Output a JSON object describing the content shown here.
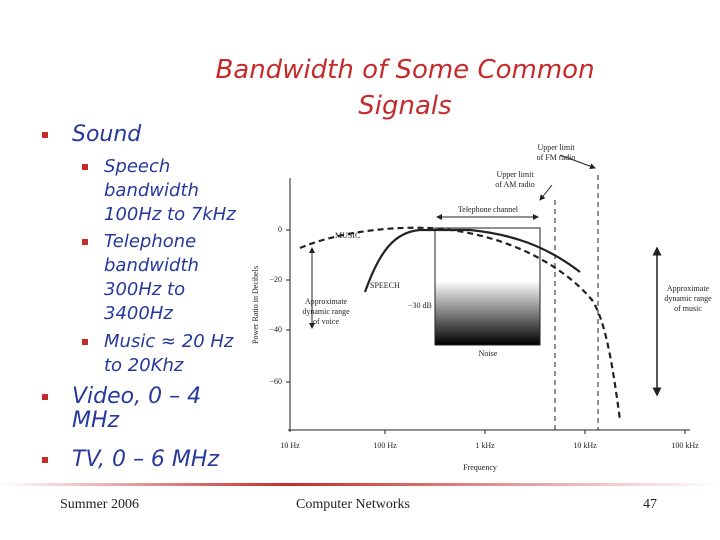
{
  "header": {
    "title": [
      "Bandwidth of Some Common",
      "Signals"
    ]
  },
  "bullets": [
    {
      "text": "Sound",
      "sub": [
        "Speech bandwidth 100Hz to 7kHz",
        "Telephone bandwidth 300Hz to 3400Hz",
        "Music ≈ 20 Hz to 20Khz"
      ]
    },
    {
      "text": "Video, 0 – 4 MHz"
    },
    {
      "text": "TV, 0 – 6 MHz"
    }
  ],
  "figure": {
    "y_axis_label": "Power Ratio in Decibels",
    "x_axis_label": "Frequency",
    "y_tick_labels": [
      "0",
      "−20",
      "−40",
      "−60"
    ],
    "x_tick_labels": [
      "10 Hz",
      "100 Hz",
      "1 kHz",
      "10 kHz",
      "100 kHz"
    ],
    "fm_limit": [
      "Upper limit",
      "of FM radio"
    ],
    "am_limit": [
      "Upper limit",
      "of AM radio"
    ],
    "telephone_channel": "Telephone channel",
    "music": "MUSIC",
    "speech": "SPEECH",
    "minus_30": "−30 dB",
    "noise": "Noise",
    "voice_range": [
      "Approximate",
      "dynamic range",
      "of voice"
    ],
    "music_range": [
      "Approximate",
      "dynamic range",
      "of music"
    ]
  },
  "footer": {
    "left": "Summer 2006",
    "center": "Computer Networks",
    "right": "47"
  }
}
